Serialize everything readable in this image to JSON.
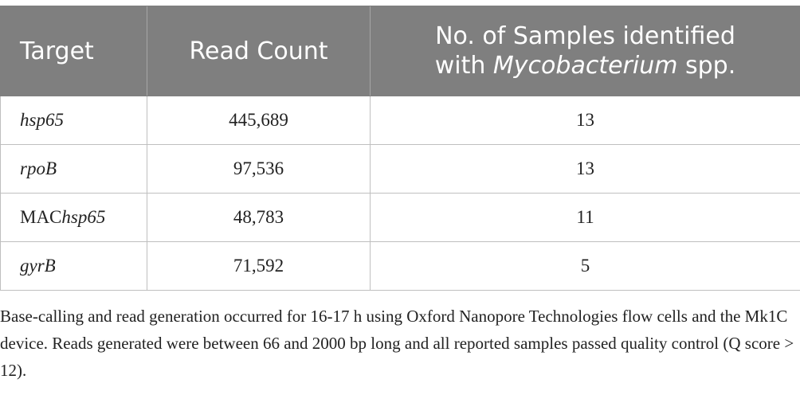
{
  "table": {
    "headers": {
      "target": "Target",
      "read_count": "Read Count",
      "samples_line1": "No. of Samples identified",
      "samples_line2_prefix": "with ",
      "samples_line2_italic": "Mycobacterium",
      "samples_line2_suffix": " spp."
    },
    "rows": [
      {
        "target_prefix": "",
        "target_italic": "hsp65",
        "read_count": "445,689",
        "samples": "13"
      },
      {
        "target_prefix": "",
        "target_italic": "rpoB",
        "read_count": "97,536",
        "samples": "13"
      },
      {
        "target_prefix": "MAC",
        "target_italic": "hsp65",
        "read_count": "48,783",
        "samples": "11"
      },
      {
        "target_prefix": "",
        "target_italic": "gyrB",
        "read_count": "71,592",
        "samples": "5"
      }
    ]
  },
  "footnote": "Base-calling and read generation occurred for 16-17 h using Oxford Nanopore Technologies flow cells and the Mk1C device. Reads generated were between 66 and 2000 bp long and all reported samples passed quality control (Q score > 12)."
}
